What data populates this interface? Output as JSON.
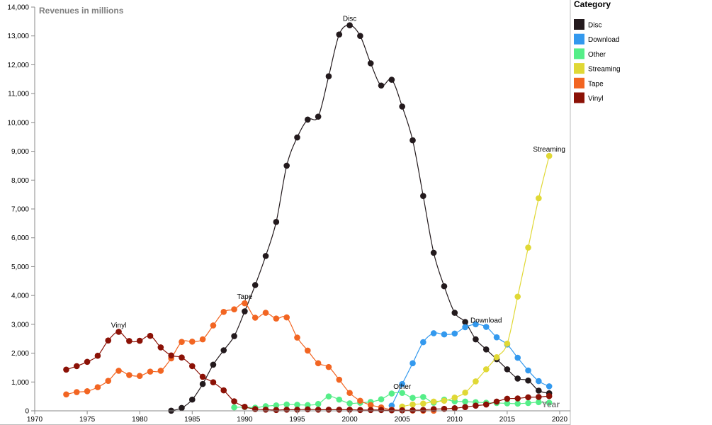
{
  "chart_data": {
    "type": "line",
    "ylabel": "Revenues in millions",
    "xlabel": "Year",
    "xlim": [
      1970,
      2020
    ],
    "ylim": [
      0,
      14000
    ],
    "x_ticks": [
      "1970",
      "1975",
      "1980",
      "1985",
      "1990",
      "1995",
      "2000",
      "2005",
      "2010",
      "2015",
      "2020"
    ],
    "y_ticks": [
      "0",
      "1,000",
      "2,000",
      "3,000",
      "4,000",
      "5,000",
      "6,000",
      "7,000",
      "8,000",
      "9,000",
      "10,000",
      "11,000",
      "12,000",
      "13,000",
      "14,000"
    ],
    "legend": {
      "title": "Category",
      "placement": "right"
    },
    "series": [
      {
        "name": "Disc",
        "color": "#231a1d",
        "label_year": 2000,
        "points": [
          [
            1983,
            5
          ],
          [
            1984,
            100
          ],
          [
            1985,
            390
          ],
          [
            1986,
            930
          ],
          [
            1987,
            1600
          ],
          [
            1988,
            2100
          ],
          [
            1989,
            2590
          ],
          [
            1990,
            3450
          ],
          [
            1991,
            4360
          ],
          [
            1992,
            5370
          ],
          [
            1993,
            6550
          ],
          [
            1994,
            8500
          ],
          [
            1995,
            9480
          ],
          [
            1996,
            10100
          ],
          [
            1997,
            10200
          ],
          [
            1998,
            11600
          ],
          [
            1999,
            13050
          ],
          [
            2000,
            13370
          ],
          [
            2001,
            13000
          ],
          [
            2002,
            12050
          ],
          [
            2003,
            11280
          ],
          [
            2004,
            11480
          ],
          [
            2005,
            10550
          ],
          [
            2006,
            9380
          ],
          [
            2007,
            7450
          ],
          [
            2008,
            5480
          ],
          [
            2009,
            4320
          ],
          [
            2010,
            3400
          ],
          [
            2011,
            3080
          ],
          [
            2012,
            2480
          ],
          [
            2013,
            2130
          ],
          [
            2014,
            1790
          ],
          [
            2015,
            1440
          ],
          [
            2016,
            1120
          ],
          [
            2017,
            1050
          ],
          [
            2018,
            700
          ],
          [
            2019,
            610
          ]
        ]
      },
      {
        "name": "Download",
        "color": "#3399ee",
        "label_year": 2013,
        "points": [
          [
            2004,
            180
          ],
          [
            2005,
            930
          ],
          [
            2006,
            1650
          ],
          [
            2007,
            2380
          ],
          [
            2008,
            2690
          ],
          [
            2009,
            2650
          ],
          [
            2010,
            2680
          ],
          [
            2011,
            2900
          ],
          [
            2012,
            3000
          ],
          [
            2013,
            2910
          ],
          [
            2014,
            2550
          ],
          [
            2015,
            2300
          ],
          [
            2016,
            1840
          ],
          [
            2017,
            1400
          ],
          [
            2018,
            1030
          ],
          [
            2019,
            850
          ]
        ]
      },
      {
        "name": "Other",
        "color": "#55ee88",
        "label_year": 2005,
        "points": [
          [
            1989,
            120
          ],
          [
            1990,
            130
          ],
          [
            1991,
            110
          ],
          [
            1992,
            160
          ],
          [
            1993,
            190
          ],
          [
            1994,
            220
          ],
          [
            1995,
            210
          ],
          [
            1996,
            200
          ],
          [
            1997,
            240
          ],
          [
            1998,
            500
          ],
          [
            1999,
            390
          ],
          [
            2000,
            260
          ],
          [
            2001,
            280
          ],
          [
            2002,
            310
          ],
          [
            2003,
            400
          ],
          [
            2004,
            600
          ],
          [
            2005,
            620
          ],
          [
            2006,
            450
          ],
          [
            2007,
            480
          ],
          [
            2008,
            280
          ],
          [
            2009,
            390
          ],
          [
            2010,
            330
          ],
          [
            2011,
            320
          ],
          [
            2012,
            300
          ],
          [
            2013,
            280
          ],
          [
            2014,
            270
          ],
          [
            2015,
            260
          ],
          [
            2016,
            250
          ],
          [
            2017,
            270
          ],
          [
            2018,
            300
          ],
          [
            2019,
            280
          ]
        ]
      },
      {
        "name": "Streaming",
        "color": "#e0d835",
        "label_year": 2019,
        "points": [
          [
            2005,
            150
          ],
          [
            2006,
            220
          ],
          [
            2007,
            250
          ],
          [
            2008,
            320
          ],
          [
            2009,
            350
          ],
          [
            2010,
            460
          ],
          [
            2011,
            630
          ],
          [
            2012,
            1020
          ],
          [
            2013,
            1440
          ],
          [
            2014,
            1860
          ],
          [
            2015,
            2330
          ],
          [
            2016,
            3960
          ],
          [
            2017,
            5660
          ],
          [
            2018,
            7370
          ],
          [
            2019,
            8840
          ]
        ]
      },
      {
        "name": "Tape",
        "color": "#f26522",
        "label_year": 1990,
        "points": [
          [
            1973,
            570
          ],
          [
            1974,
            650
          ],
          [
            1975,
            680
          ],
          [
            1976,
            820
          ],
          [
            1977,
            1040
          ],
          [
            1978,
            1390
          ],
          [
            1979,
            1240
          ],
          [
            1980,
            1210
          ],
          [
            1981,
            1360
          ],
          [
            1982,
            1390
          ],
          [
            1983,
            1820
          ],
          [
            1984,
            2390
          ],
          [
            1985,
            2400
          ],
          [
            1986,
            2480
          ],
          [
            1987,
            2960
          ],
          [
            1988,
            3430
          ],
          [
            1989,
            3520
          ],
          [
            1990,
            3730
          ],
          [
            1991,
            3230
          ],
          [
            1992,
            3400
          ],
          [
            1993,
            3200
          ],
          [
            1994,
            3240
          ],
          [
            1995,
            2540
          ],
          [
            1996,
            2090
          ],
          [
            1997,
            1650
          ],
          [
            1998,
            1520
          ],
          [
            1999,
            1080
          ],
          [
            2000,
            620
          ],
          [
            2001,
            350
          ],
          [
            2002,
            200
          ],
          [
            2003,
            120
          ],
          [
            2004,
            40
          ],
          [
            2005,
            20
          ],
          [
            2006,
            10
          ],
          [
            2007,
            5
          ],
          [
            2008,
            3
          ]
        ]
      },
      {
        "name": "Vinyl",
        "color": "#8b1106",
        "label_year": 1978,
        "points": [
          [
            1973,
            1430
          ],
          [
            1974,
            1550
          ],
          [
            1975,
            1700
          ],
          [
            1976,
            1910
          ],
          [
            1977,
            2440
          ],
          [
            1978,
            2740
          ],
          [
            1979,
            2420
          ],
          [
            1980,
            2430
          ],
          [
            1981,
            2600
          ],
          [
            1982,
            2200
          ],
          [
            1983,
            1920
          ],
          [
            1984,
            1850
          ],
          [
            1985,
            1550
          ],
          [
            1986,
            1180
          ],
          [
            1987,
            990
          ],
          [
            1988,
            710
          ],
          [
            1989,
            330
          ],
          [
            1990,
            140
          ],
          [
            1991,
            60
          ],
          [
            1992,
            40
          ],
          [
            1993,
            30
          ],
          [
            1994,
            40
          ],
          [
            1995,
            40
          ],
          [
            1996,
            50
          ],
          [
            1997,
            40
          ],
          [
            1998,
            40
          ],
          [
            1999,
            40
          ],
          [
            2000,
            40
          ],
          [
            2001,
            30
          ],
          [
            2002,
            30
          ],
          [
            2003,
            30
          ],
          [
            2004,
            20
          ],
          [
            2005,
            20
          ],
          [
            2006,
            20
          ],
          [
            2007,
            30
          ],
          [
            2008,
            60
          ],
          [
            2009,
            70
          ],
          [
            2010,
            90
          ],
          [
            2011,
            130
          ],
          [
            2012,
            180
          ],
          [
            2013,
            220
          ],
          [
            2014,
            320
          ],
          [
            2015,
            420
          ],
          [
            2016,
            430
          ],
          [
            2017,
            470
          ],
          [
            2018,
            480
          ],
          [
            2019,
            510
          ]
        ]
      }
    ]
  }
}
